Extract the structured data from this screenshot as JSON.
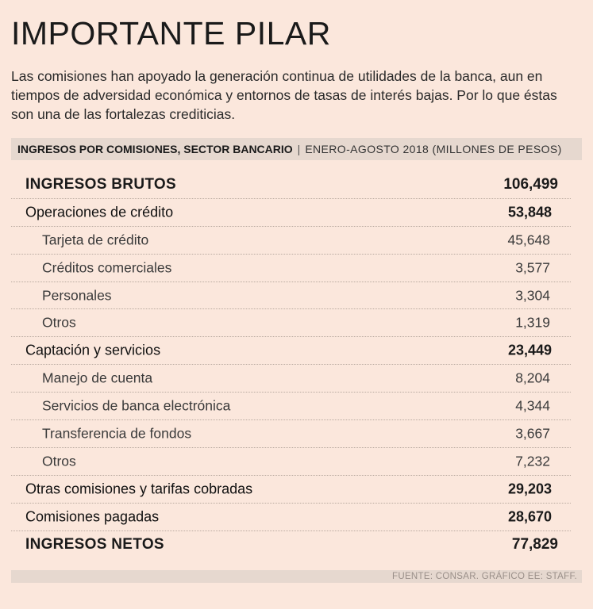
{
  "title": "IMPORTANTE PILAR",
  "subtitle": "Las comisiones han apoyado la generación continua de utilidades de la banca, aun en tiempos de adversidad económica y entornos de tasas  de interés bajas. Por lo que éstas son una de las fortalezas crediticias.",
  "table_header": {
    "main": "INGRESOS POR COMISIONES, SECTOR BANCARIO",
    "separator": "|",
    "sub": "ENERO-AGOSTO 2018 (MILLONES DE PESOS)"
  },
  "rows": [
    {
      "label": "INGRESOS BRUTOS",
      "value": "106,499"
    },
    {
      "label": "Operaciones de crédito",
      "value": "53,848"
    },
    {
      "label": "Tarjeta de crédito",
      "value": "45,648"
    },
    {
      "label": "Créditos comerciales",
      "value": "3,577"
    },
    {
      "label": "Personales",
      "value": "3,304"
    },
    {
      "label": "Otros",
      "value": "1,319"
    },
    {
      "label": "Captación y servicios",
      "value": "23,449"
    },
    {
      "label": "Manejo de cuenta",
      "value": "8,204"
    },
    {
      "label": "Servicios de banca electrónica",
      "value": "4,344"
    },
    {
      "label": "Transferencia de fondos",
      "value": "3,667"
    },
    {
      "label": "Otros",
      "value": "7,232"
    },
    {
      "label": "Otras comisiones y tarifas cobradas",
      "value": "29,203"
    },
    {
      "label": "Comisiones pagadas",
      "value": "28,670"
    },
    {
      "label": "INGRESOS  NETOS",
      "value": "77,829"
    }
  ],
  "source": "FUENTE: CONSAR. GRÁFICO EE: STAFF."
}
